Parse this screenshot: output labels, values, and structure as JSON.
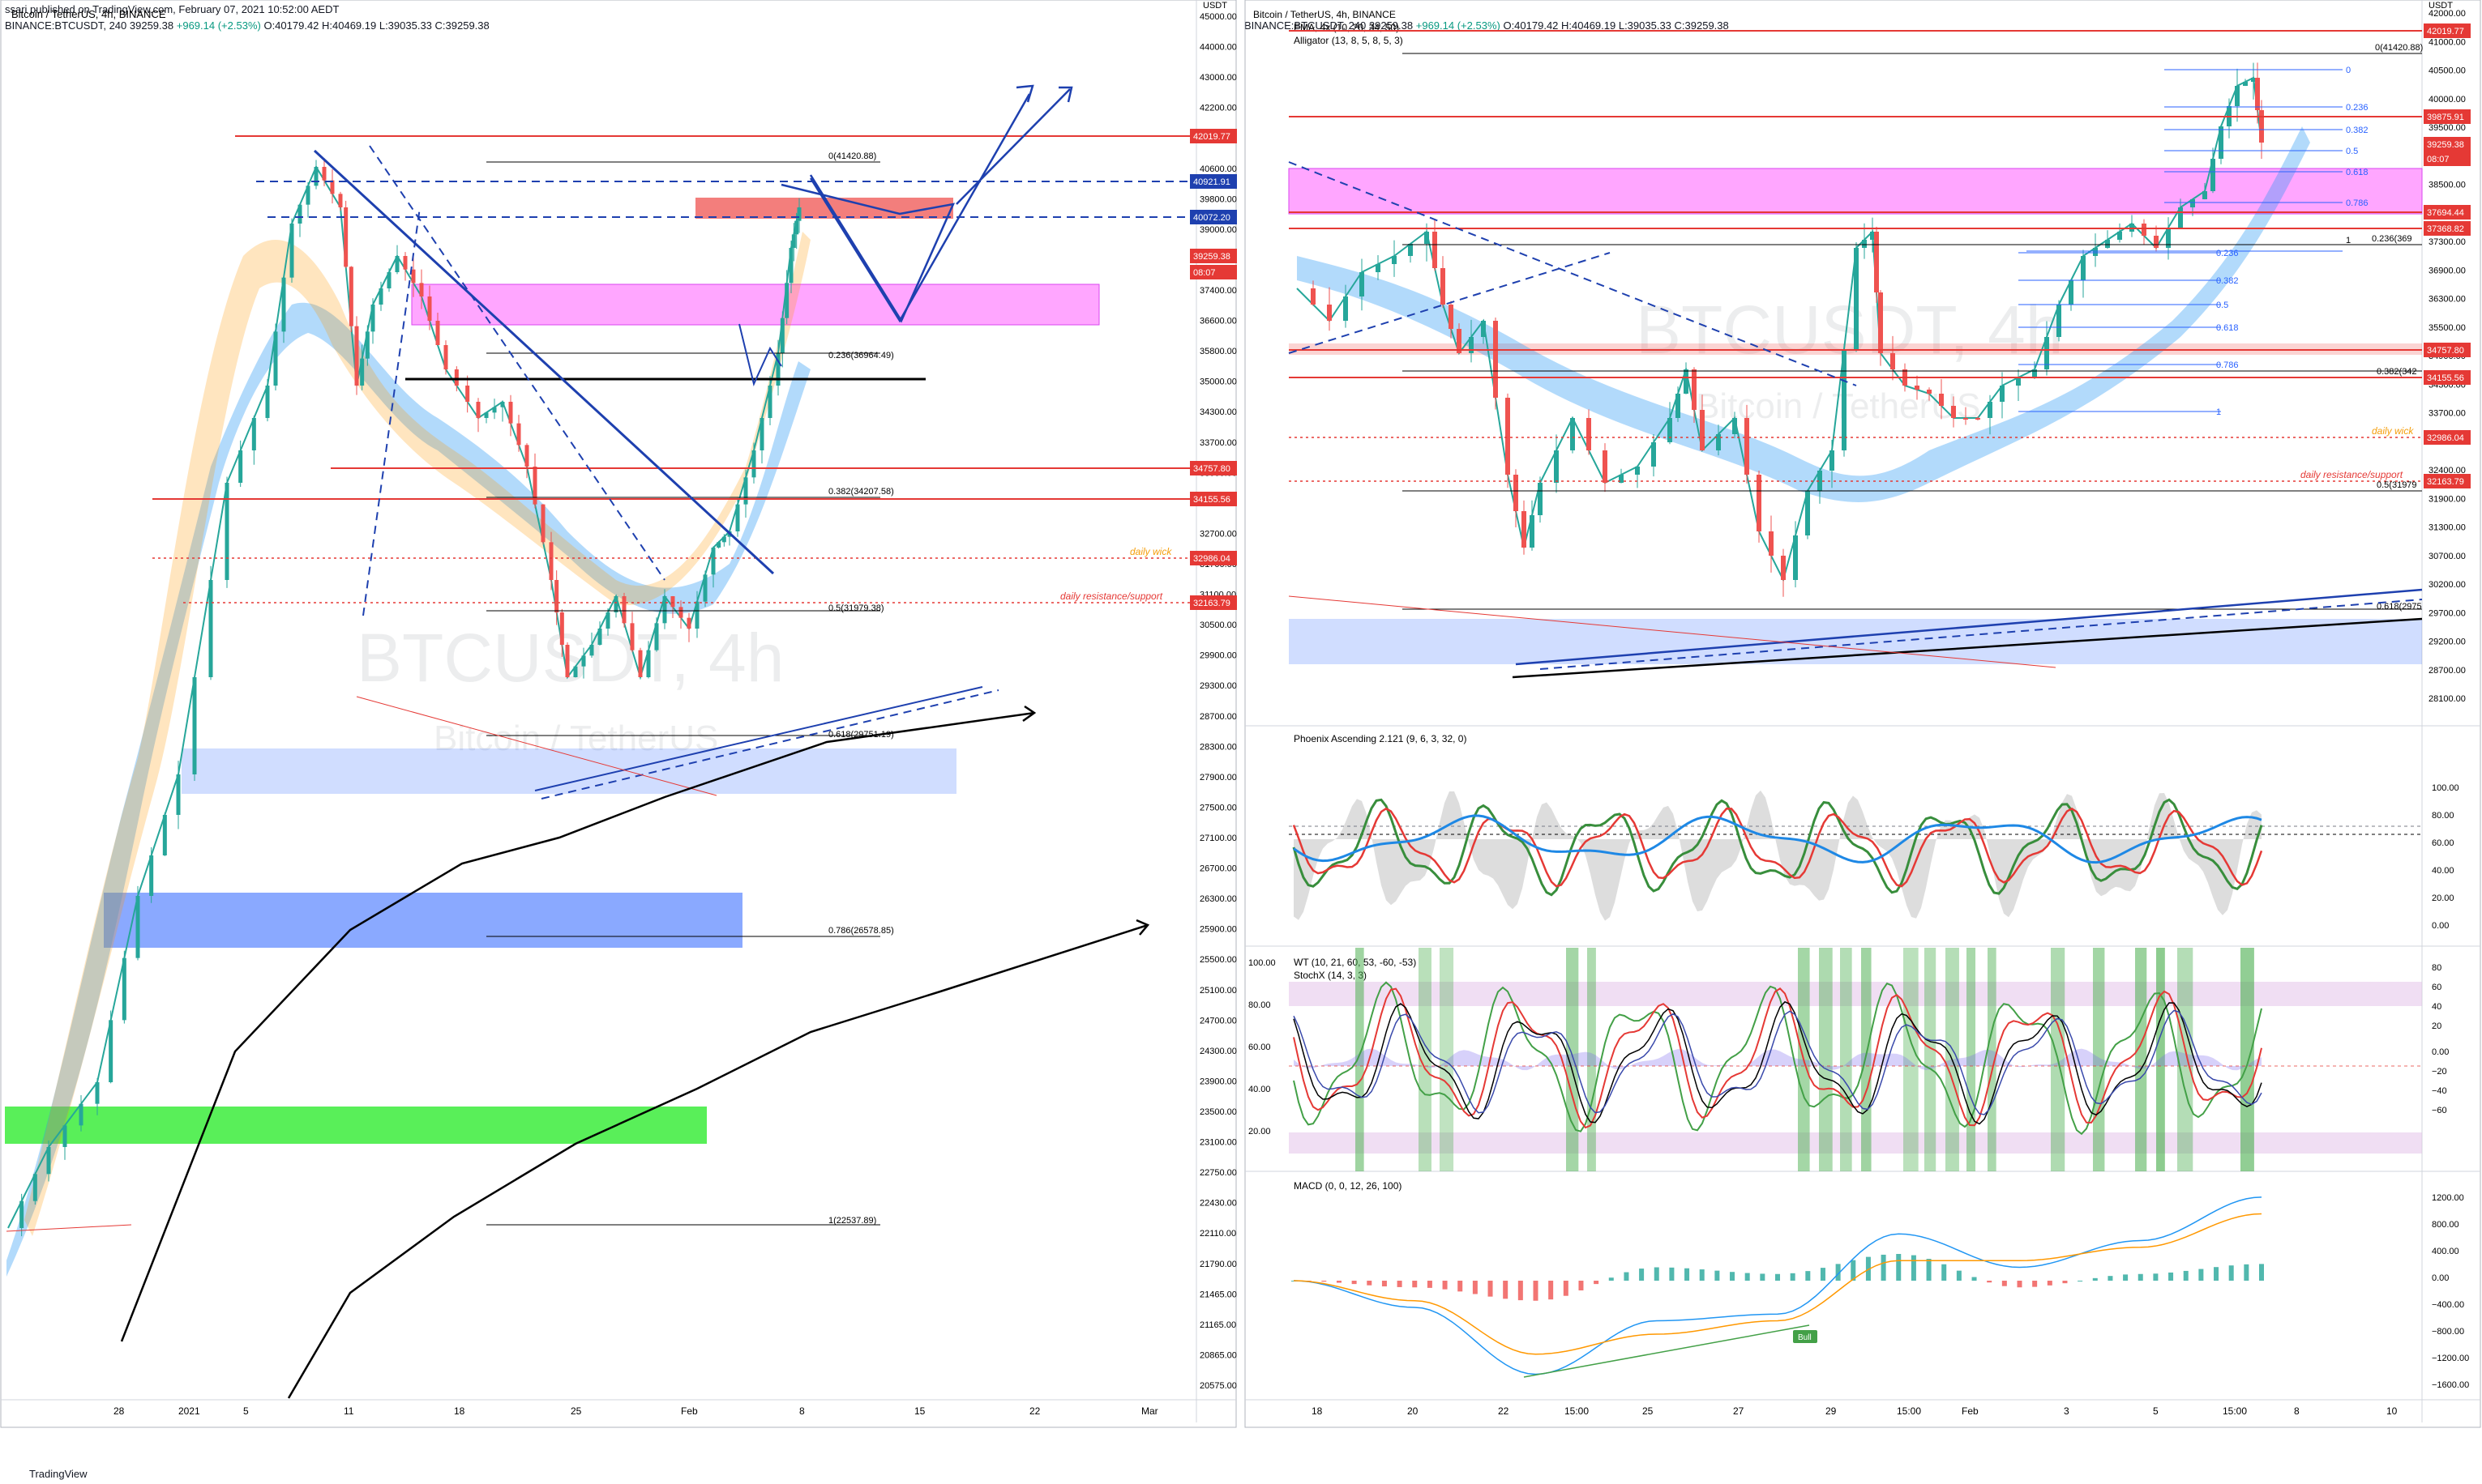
{
  "header": {
    "publisher_line": "ssari published on TradingView.com, February 07, 2021 10:52:00 AEDT",
    "left_symbol": "BINANCE:BTCUSDT, 240",
    "right_symbol": "BINANCE:BTCUSDT, 240",
    "price": "39259.38",
    "change": "+969.14 (+2.53%)",
    "ohlc": "O:40179.42 H:40469.19 L:39035.33 C:39259.38"
  },
  "left_chart": {
    "title": "Bitcoin / TetherUS, 4h, BINANCE",
    "watermark": "BTCUSDT, 4h",
    "watermark_sub": "Bitcoin / TetherUS",
    "axis_unit": "USDT",
    "y_ticks": [
      "45000.00",
      "44000.00",
      "43000.00",
      "42200.00",
      "41400.00",
      "40600.00",
      "39800.00",
      "39000.00",
      "38200.00",
      "37400.00",
      "36600.00",
      "35800.00",
      "35000.00",
      "34300.00",
      "33700.00",
      "33000.00",
      "32200.00",
      "32700.00",
      "31700.00",
      "31100.00",
      "30500.00",
      "29900.00",
      "29300.00",
      "28700.00",
      "28300.00",
      "27900.00",
      "27500.00",
      "27100.00",
      "26700.00",
      "26300.00",
      "25900.00",
      "25500.00",
      "25100.00",
      "24700.00",
      "24300.00",
      "23900.00",
      "23500.00",
      "23100.00",
      "22750.00",
      "22430.00",
      "22110.00",
      "21790.00",
      "21465.00",
      "21165.00",
      "20865.00",
      "20575.00"
    ],
    "x_ticks": [
      "28",
      "2021",
      "5",
      "11",
      "18",
      "25",
      "Feb",
      "8",
      "15",
      "22",
      "Mar"
    ],
    "price_tags": [
      {
        "label": "42019.77",
        "color": "#e53935"
      },
      {
        "label": "40921.91",
        "color": "#1e40af"
      },
      {
        "label": "40072.20",
        "color": "#1e40af"
      },
      {
        "label": "39259.38",
        "color": "#e53935"
      },
      {
        "label": "08:07",
        "color": "#e53935"
      },
      {
        "label": "34757.80",
        "color": "#e53935"
      },
      {
        "label": "34155.56",
        "color": "#e53935"
      },
      {
        "label": "32986.04",
        "color": "#e53935"
      },
      {
        "label": "32163.79",
        "color": "#e53935"
      }
    ],
    "fib_labels": [
      "0(41420.88)",
      "0.236(36964.49)",
      "0.382(34207.58)",
      "0.5(31979.38)",
      "0.618(29751.19)",
      "0.786(26578.85)",
      "1(22537.89)"
    ],
    "annotations": [
      "daily wick",
      "daily resistance/support"
    ]
  },
  "right_chart": {
    "title": "Bitcoin / TetherUS, 4h, BINANCE",
    "ema_label": "EMA, 4x (10, 20, 34, 50)",
    "alligator_label": "Alligator (13, 8, 5, 8, 5, 3)",
    "watermark": "BTCUSDT, 4h",
    "watermark_sub": "Bitcoin / TetherUS",
    "axis_unit": "USDT",
    "y_ticks": [
      "42000.00",
      "41000.00",
      "40500.00",
      "40000.00",
      "39500.00",
      "39000.00",
      "38500.00",
      "37800.00",
      "37300.00",
      "36900.00",
      "36300.00",
      "35500.00",
      "34900.00",
      "34300.00",
      "33700.00",
      "33100.00",
      "32400.00",
      "31900.00",
      "31300.00",
      "30700.00",
      "30200.00",
      "29700.00",
      "29200.00",
      "28700.00",
      "28100.00"
    ],
    "x_ticks": [
      "18",
      "20",
      "22",
      "15:00",
      "25",
      "27",
      "29",
      "15:00",
      "Feb",
      "3",
      "5",
      "15:00",
      "8",
      "10"
    ],
    "price_tags": [
      {
        "label": "42019.77",
        "color": "#e53935"
      },
      {
        "label": "39875.91",
        "color": "#e53935"
      },
      {
        "label": "39259.38",
        "color": "#e53935"
      },
      {
        "label": "08:07",
        "color": "#e53935"
      },
      {
        "label": "37694.44",
        "color": "#e53935"
      },
      {
        "label": "37368.82",
        "color": "#e53935"
      },
      {
        "label": "34757.80",
        "color": "#e53935"
      },
      {
        "label": "34155.56",
        "color": "#e53935"
      },
      {
        "label": "32986.04",
        "color": "#e53935"
      },
      {
        "label": "32163.79",
        "color": "#e53935"
      }
    ],
    "fib_main": [
      "0(41420.88)",
      "0.236(369",
      "0.382(342",
      "0.5(31979",
      "0.618(2975"
    ],
    "fib_small": [
      "0",
      "0.236",
      "0.382",
      "0.5",
      "0.618",
      "0.786",
      "1",
      "0.236",
      "0.382",
      "0.5",
      "0.618",
      "0.786",
      "1"
    ],
    "annotations": [
      "daily wick",
      "daily resistance/support"
    ]
  },
  "phoenix": {
    "label": "Phoenix Ascending 2.121 (9, 6, 3, 32, 0)",
    "y_ticks": [
      "100.00",
      "80.00",
      "60.00",
      "40.00",
      "20.00",
      "0.00"
    ]
  },
  "wt": {
    "label1": "WT (10, 21, 60, 53, -60, -53)",
    "label2": "StochX (14, 3, 3)",
    "left_ticks": [
      "100.00",
      "80.00",
      "60.00",
      "40.00",
      "20.00"
    ],
    "right_ticks": [
      "80",
      "60",
      "40",
      "20",
      "0.00",
      "−20",
      "−40",
      "−60"
    ]
  },
  "macd": {
    "label": "MACD (0, 0, 12, 26, 100)",
    "y_ticks": [
      "1200.00",
      "800.00",
      "400.00",
      "0.00",
      "−400.00",
      "−800.00",
      "−1200.00",
      "−1600.00"
    ],
    "bull_label": "Bull"
  },
  "footer": {
    "brand": "TradingView"
  },
  "chart_data": [
    {
      "type": "line",
      "title": "Bitcoin / TetherUS, 4h, BINANCE",
      "x": [
        "28",
        "2021",
        "5",
        "11",
        "18",
        "25",
        "Feb",
        "8",
        "15",
        "22",
        "Mar"
      ],
      "series": [
        {
          "name": "BTCUSDT",
          "values": [
            26500,
            29300,
            33500,
            39800,
            36600,
            31500,
            33700,
            39800,
            null,
            null,
            null
          ]
        }
      ],
      "horizontal_levels": [
        42019.77,
        40921.91,
        40072.2,
        34757.8,
        34155.56,
        32986.04,
        32163.79
      ],
      "fib_levels": [
        41420.88,
        36964.49,
        34207.58,
        31979.38,
        29751.19,
        26578.85,
        22537.89
      ],
      "ylim": [
        20575,
        45000
      ],
      "grid": false
    },
    {
      "type": "line",
      "title": "Bitcoin / TetherUS, 4h, BINANCE",
      "x": [
        "18",
        "20",
        "22",
        "25",
        "27",
        "29",
        "Feb",
        "3",
        "5",
        "8",
        "10"
      ],
      "series": [
        {
          "name": "BTCUSDT",
          "values": [
            36500,
            37200,
            31800,
            34200,
            31000,
            36800,
            34000,
            35800,
            38400,
            null,
            null
          ]
        }
      ],
      "horizontal_levels": [
        42019.77,
        39875.91,
        37694.44,
        37368.82,
        34757.8,
        34155.56,
        32986.04,
        32163.79
      ],
      "ylim": [
        28100,
        42000
      ],
      "grid": false
    },
    {
      "type": "line",
      "title": "MACD (0, 0, 12, 26, 100)",
      "series": [
        {
          "name": "MACD",
          "values": [
            0,
            -400,
            -1400,
            -600,
            -500,
            700,
            200,
            600,
            1250
          ]
        },
        {
          "name": "Signal",
          "values": [
            0,
            -300,
            -1100,
            -800,
            -600,
            300,
            300,
            500,
            1000
          ]
        }
      ],
      "ylim": [
        -1600,
        1200
      ],
      "grid": false
    }
  ]
}
